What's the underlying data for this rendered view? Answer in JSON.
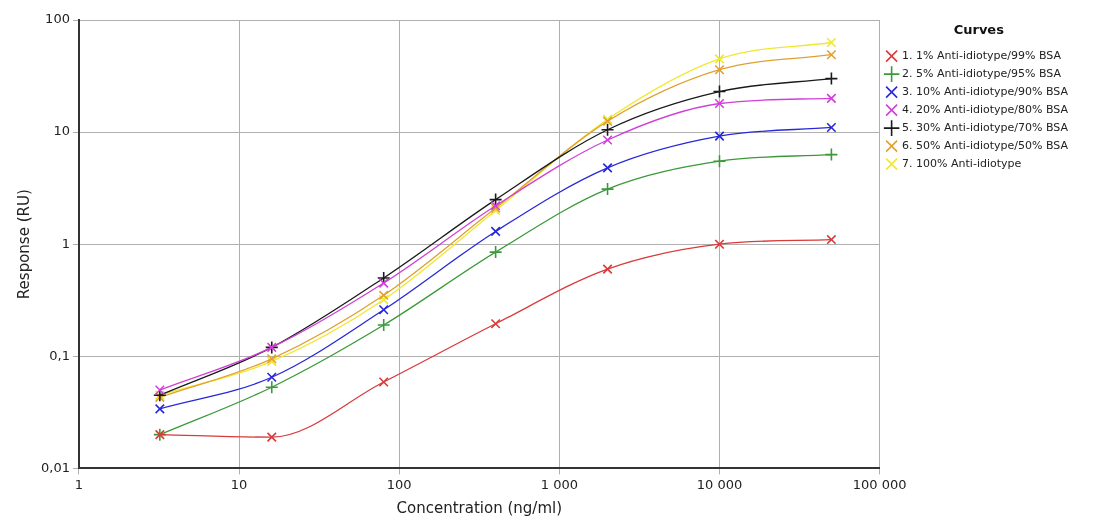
{
  "chart_data": {
    "type": "line",
    "xlabel": "Concentration (ng/ml)",
    "ylabel": "Response (RU)",
    "legend_title": "Curves",
    "legend": "top right",
    "grid": true,
    "log": "xy",
    "line_style": "solid",
    "x": [
      3.2,
      16,
      80,
      400,
      2000,
      10000,
      50000
    ],
    "xlim": [
      1,
      100000
    ],
    "xticks": [
      1,
      10,
      100,
      {
        "value": 1000,
        "label": "1 000"
      },
      {
        "value": 10000,
        "label": "10 000"
      },
      {
        "value": 100000,
        "label": "100 000"
      }
    ],
    "ylim": [
      0.01,
      100
    ],
    "yticks": [
      {
        "value": 0.01,
        "label": "0,01"
      },
      {
        "value": 0.1,
        "label": "0,1"
      },
      1,
      10,
      100
    ],
    "series": [
      {
        "name": "1. 1% Anti-idiotype/99% BSA",
        "color": "#d93a3a",
        "marker": "cross",
        "values": [
          0.02,
          0.019,
          0.059,
          0.195,
          0.6,
          1.0,
          1.1
        ]
      },
      {
        "name": "2. 5% Anti-idiotype/95% BSA",
        "color": "#3a9a3a",
        "marker": "plus",
        "values": [
          0.02,
          0.053,
          0.19,
          0.85,
          3.1,
          5.5,
          6.3
        ]
      },
      {
        "name": "3. 10% Anti-idiotype/90% BSA",
        "color": "#2828d8",
        "marker": "cross",
        "values": [
          0.034,
          0.065,
          0.26,
          1.3,
          4.8,
          9.2,
          11
        ]
      },
      {
        "name": "4. 20% Anti-idiotype/80% BSA",
        "color": "#d040d8",
        "marker": "cross",
        "values": [
          0.05,
          0.12,
          0.45,
          2.2,
          8.5,
          18,
          20
        ]
      },
      {
        "name": "5. 30% Anti-idiotype/70% BSA",
        "color": "#1a1a1a",
        "marker": "plus",
        "values": [
          0.045,
          0.12,
          0.5,
          2.5,
          10.5,
          23,
          30
        ]
      },
      {
        "name": "6. 50% Anti-idiotype/50% BSA",
        "color": "#e0a030",
        "marker": "cross",
        "values": [
          0.043,
          0.095,
          0.35,
          2.1,
          12.5,
          36,
          49
        ]
      },
      {
        "name": "7. 100% Anti-idiotype",
        "color": "#f0e830",
        "marker": "cross",
        "values": [
          0.045,
          0.09,
          0.32,
          2.0,
          13,
          45,
          63
        ]
      }
    ]
  }
}
